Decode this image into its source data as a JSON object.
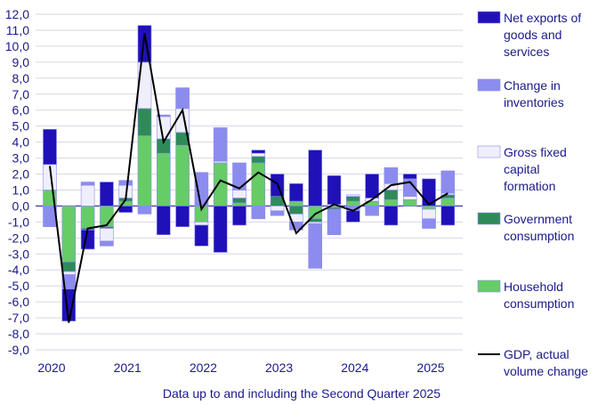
{
  "chart_data": {
    "type": "bar",
    "stacked": true,
    "quarters": [
      "2020Q1",
      "2020Q2",
      "2020Q3",
      "2020Q4",
      "2021Q1",
      "2021Q2",
      "2021Q3",
      "2021Q4",
      "2022Q1",
      "2022Q2",
      "2022Q3",
      "2022Q4",
      "2023Q1",
      "2023Q2",
      "2023Q3",
      "2023Q4",
      "2024Q1",
      "2024Q2",
      "2024Q3",
      "2024Q4",
      "2025Q1",
      "2025Q2"
    ],
    "x_tick_labels": [
      "2020",
      "2021",
      "2022",
      "2023",
      "2024",
      "2025"
    ],
    "ylim": [
      -9,
      12
    ],
    "y_ticks": [
      "-9,0",
      "-8,0",
      "-7,0",
      "-6,0",
      "-5,0",
      "-4,0",
      "-3,0",
      "-2,0",
      "-1,0",
      "0,0",
      "1,0",
      "2,0",
      "3,0",
      "4,0",
      "5,0",
      "6,0",
      "7,0",
      "8,0",
      "9,0",
      "10,0",
      "11,0",
      "12,0"
    ],
    "grid": true,
    "legend_position": "right",
    "series": [
      {
        "name": "Household consumption",
        "color": "#66cc66",
        "values": [
          1.0,
          -3.5,
          -1.4,
          -1.3,
          0.3,
          4.4,
          3.3,
          3.8,
          -1.0,
          2.7,
          0.2,
          2.7,
          0.0,
          0.3,
          -0.8,
          -0.1,
          0.3,
          0.3,
          0.4,
          0.4,
          -0.2,
          0.5
        ]
      },
      {
        "name": "Government consumption",
        "color": "#2e8b57",
        "values": [
          0.0,
          -0.6,
          -0.1,
          -0.1,
          0.2,
          1.7,
          0.9,
          0.8,
          0.0,
          0.0,
          0.3,
          0.4,
          0.6,
          -0.5,
          -0.2,
          -0.1,
          0.3,
          0.0,
          0.6,
          0.0,
          0.0,
          0.2
        ]
      },
      {
        "name": "Gross fixed capital formation",
        "color": "#efeffb",
        "values": [
          1.6,
          -0.2,
          1.3,
          -0.8,
          0.8,
          2.9,
          1.4,
          1.5,
          -0.2,
          0.1,
          0.5,
          0.2,
          -0.3,
          -0.5,
          -0.1,
          0.1,
          0.1,
          0.2,
          0.4,
          0.2,
          -0.6,
          0.1
        ]
      },
      {
        "name": "Change in inventories",
        "color": "#8c8cee",
        "values": [
          -1.3,
          -0.9,
          0.2,
          -0.3,
          0.3,
          -0.5,
          0.1,
          1.3,
          2.1,
          2.1,
          1.7,
          -0.8,
          -0.3,
          -0.5,
          -2.8,
          -1.6,
          -0.3,
          -0.6,
          1.0,
          1.1,
          -0.6,
          1.4
        ]
      },
      {
        "name": "Net exports of goods and services",
        "color": "#1f10b8",
        "values": [
          2.2,
          -2.0,
          -1.2,
          1.5,
          -0.4,
          2.3,
          -1.8,
          -1.3,
          -1.3,
          -2.9,
          -1.2,
          0.2,
          1.4,
          1.1,
          3.5,
          1.8,
          -0.7,
          1.5,
          -1.2,
          0.3,
          1.7,
          -1.2
        ]
      },
      {
        "name": "GDP, actual volume change",
        "color": "#000000",
        "type": "line",
        "values": [
          2.5,
          -7.3,
          -1.4,
          -1.2,
          0.4,
          10.8,
          4.0,
          6.0,
          -0.2,
          1.6,
          1.1,
          2.1,
          1.4,
          -1.7,
          -0.5,
          0.1,
          -0.3,
          0.4,
          1.3,
          1.5,
          0.1,
          0.8
        ]
      }
    ],
    "legend": [
      "Net exports of goods and services",
      "Change in inventories",
      "Gross fixed capital formation",
      "Government consumption",
      "Household consumption",
      "GDP, actual volume change"
    ],
    "legend_lines": [
      [
        "Net exports of",
        "goods and",
        "services"
      ],
      [
        "Change in",
        "inventories"
      ],
      [
        "Gross fixed",
        "capital",
        "formation"
      ],
      [
        "Government",
        "consumption"
      ],
      [
        "Household",
        "consumption"
      ],
      [
        "GDP, actual",
        "volume change"
      ]
    ],
    "note": "Data up to and including the Second Quarter 2025"
  }
}
